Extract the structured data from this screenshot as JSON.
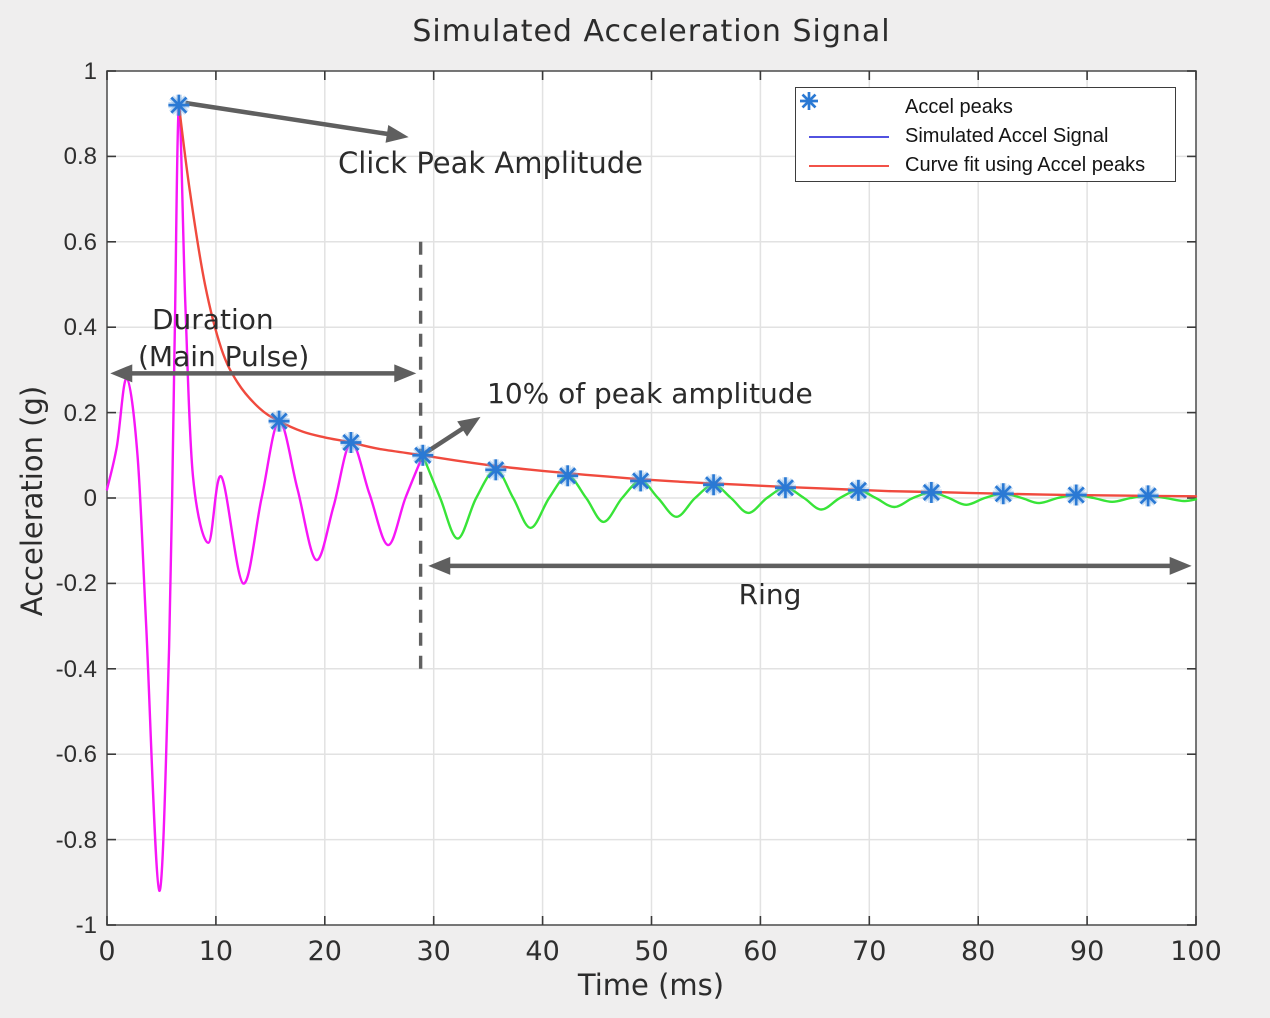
{
  "chart_data": {
    "type": "line",
    "title": "Simulated Acceleration Signal",
    "xlabel": "Time (ms)",
    "ylabel": "Acceleration (g)",
    "xlim": [
      0,
      100
    ],
    "ylim": [
      -1,
      1
    ],
    "xticks": [
      0,
      10,
      20,
      30,
      40,
      50,
      60,
      70,
      80,
      90,
      100
    ],
    "yticks": [
      -1,
      -0.8,
      -0.6,
      -0.4,
      -0.2,
      0,
      0.2,
      0.4,
      0.6,
      0.8,
      1
    ],
    "grid": true,
    "background_color": "#efeeee",
    "plot_background": "#ffffff",
    "grid_color": "#e2e2e2",
    "axis_color": "#555555",
    "legend": {
      "position": "top-right",
      "entries": [
        {
          "label": "Accel peaks",
          "swatch": "asterisk",
          "color": "#2a79d4"
        },
        {
          "label": "Simulated Accel Signal",
          "swatch": "line",
          "color": "#5252e0"
        },
        {
          "label": "Curve fit using Accel peaks",
          "swatch": "line",
          "color": "#f25248"
        }
      ]
    },
    "series": [
      {
        "name": "Simulated Accel Signal (main pulse segment)",
        "color": "#f716f7",
        "points": [
          [
            0,
            0.02
          ],
          [
            0.9,
            0.12
          ],
          [
            1.8,
            0.28
          ],
          [
            2.8,
            0.1
          ],
          [
            3.6,
            -0.3
          ],
          [
            4.8,
            -0.92
          ],
          [
            5.7,
            -0.35
          ],
          [
            6.2,
            0.35
          ],
          [
            6.6,
            0.92
          ],
          [
            7.2,
            0.45
          ],
          [
            7.9,
            0.05
          ],
          [
            9.3,
            -0.105
          ],
          [
            10.5,
            0.05
          ],
          [
            12.5,
            -0.2
          ],
          [
            14.2,
            0
          ],
          [
            15.8,
            0.18
          ],
          [
            17.5,
            0.02
          ],
          [
            19.2,
            -0.145
          ],
          [
            20.8,
            -0.02
          ],
          [
            22.4,
            0.13
          ],
          [
            24.1,
            0.01
          ],
          [
            25.8,
            -0.11
          ],
          [
            27.4,
            0
          ],
          [
            29,
            0.1
          ]
        ]
      },
      {
        "name": "Simulated Accel Signal (ring segment)",
        "color": "#38e438",
        "points": [
          [
            29,
            0.1
          ],
          [
            30.6,
            0
          ],
          [
            32.2,
            -0.095
          ],
          [
            33.9,
            0
          ],
          [
            35.7,
            0.066
          ],
          [
            37.3,
            0
          ],
          [
            38.9,
            -0.07
          ],
          [
            40.6,
            0
          ],
          [
            42.3,
            0.052
          ],
          [
            44,
            0
          ],
          [
            45.6,
            -0.056
          ],
          [
            47.3,
            0
          ],
          [
            49,
            0.04
          ],
          [
            50.6,
            0
          ],
          [
            52.3,
            -0.044
          ],
          [
            54,
            0
          ],
          [
            55.7,
            0.031
          ],
          [
            57.3,
            0
          ],
          [
            58.9,
            -0.035
          ],
          [
            60.6,
            0
          ],
          [
            62.3,
            0.024
          ],
          [
            64,
            0
          ],
          [
            65.6,
            -0.027
          ],
          [
            67.3,
            0
          ],
          [
            69,
            0.018
          ],
          [
            70.6,
            0
          ],
          [
            72.3,
            -0.021
          ],
          [
            74,
            0
          ],
          [
            75.7,
            0.013
          ],
          [
            77.3,
            0
          ],
          [
            78.9,
            -0.016
          ],
          [
            80.6,
            0
          ],
          [
            82.3,
            0.01
          ],
          [
            84,
            0
          ],
          [
            85.6,
            -0.012
          ],
          [
            87.3,
            0
          ],
          [
            89,
            0.007
          ],
          [
            90.6,
            0
          ],
          [
            92.3,
            -0.009
          ],
          [
            94,
            0
          ],
          [
            95.6,
            0.005
          ],
          [
            97.2,
            0
          ],
          [
            98.9,
            -0.007
          ],
          [
            100,
            -0.003
          ]
        ]
      },
      {
        "name": "Curve fit using Accel peaks",
        "color": "#f04a3e",
        "points": [
          [
            6.6,
            0.92
          ],
          [
            7.6,
            0.72
          ],
          [
            9,
            0.5
          ],
          [
            10.5,
            0.35
          ],
          [
            12,
            0.27
          ],
          [
            14,
            0.21
          ],
          [
            15.8,
            0.18
          ],
          [
            18,
            0.155
          ],
          [
            20,
            0.142
          ],
          [
            22.4,
            0.13
          ],
          [
            25,
            0.115
          ],
          [
            29,
            0.1
          ],
          [
            32,
            0.088
          ],
          [
            35.7,
            0.075
          ],
          [
            39,
            0.066
          ],
          [
            42.3,
            0.058
          ],
          [
            46,
            0.05
          ],
          [
            49,
            0.044
          ],
          [
            52,
            0.039
          ],
          [
            55.7,
            0.034
          ],
          [
            59,
            0.03
          ],
          [
            62.3,
            0.026
          ],
          [
            66,
            0.022
          ],
          [
            69,
            0.019
          ],
          [
            72,
            0.016
          ],
          [
            75.7,
            0.014
          ],
          [
            79,
            0.012
          ],
          [
            82.3,
            0.01
          ],
          [
            86,
            0.008
          ],
          [
            89,
            0.007
          ],
          [
            92,
            0.006
          ],
          [
            95.6,
            0.005
          ],
          [
            100,
            0.004
          ]
        ]
      }
    ],
    "accel_peaks": {
      "label": "Accel peaks",
      "color": "#2a79d4",
      "points": [
        [
          6.6,
          0.92
        ],
        [
          15.8,
          0.18
        ],
        [
          22.4,
          0.13
        ],
        [
          29,
          0.1
        ],
        [
          35.7,
          0.066
        ],
        [
          42.3,
          0.052
        ],
        [
          49,
          0.04
        ],
        [
          55.7,
          0.031
        ],
        [
          62.3,
          0.024
        ],
        [
          69,
          0.018
        ],
        [
          75.7,
          0.013
        ],
        [
          82.3,
          0.01
        ],
        [
          89,
          0.007
        ],
        [
          95.6,
          0.005
        ]
      ]
    },
    "threshold_line": {
      "t": 28.8,
      "v_from": 0.6,
      "v_to": -0.41,
      "style": "dashed",
      "color": "#606060"
    },
    "annotations": [
      {
        "id": "click-peak-amplitude",
        "text": "Click Peak Amplitude",
        "arrow": {
          "from_t": 7.2,
          "from_v": 0.925,
          "to_t": 27.7,
          "to_v": 0.845,
          "heads": "end"
        }
      },
      {
        "id": "duration-main-pulse",
        "line1": "Duration",
        "line2": "(Main Pulse)",
        "arrow": {
          "from_t": 0.3,
          "from_v": 0.292,
          "to_t": 28.4,
          "to_v": 0.292,
          "heads": "both"
        }
      },
      {
        "id": "ten-percent-of-peak",
        "text": "10% of peak amplitude",
        "arrow": {
          "from_t": 29.2,
          "from_v": 0.105,
          "to_t": 34.3,
          "to_v": 0.19,
          "heads": "end"
        }
      },
      {
        "id": "ring",
        "text": "Ring",
        "arrow": {
          "from_t": 29.5,
          "from_v": -0.159,
          "to_t": 99.6,
          "to_v": -0.159,
          "heads": "both"
        }
      }
    ],
    "annotation_color": "#5f5f5f"
  }
}
